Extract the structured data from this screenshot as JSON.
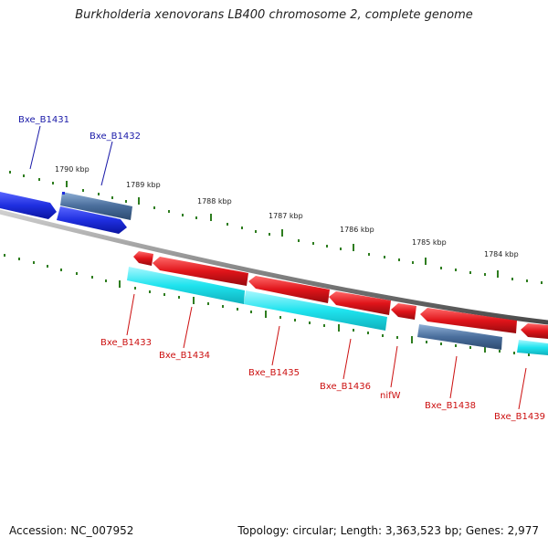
{
  "title": "Burkholderia xenovorans LB400 chromosome 2, complete genome",
  "footer": {
    "accession": "Accession: NC_007952",
    "topology": "Topology: circular; Length: 3,363,523 bp; Genes: 2,977"
  },
  "colors": {
    "backbone": "#8a8a8a",
    "tick": "#2e7d1f",
    "forward_gene": "#1f2fe0",
    "forward_cds": "#4a6e9c",
    "reverse_gene": "#e0141a",
    "reverse_cds": "#1fe3ee",
    "forward_label": "#1a1aa8",
    "reverse_label": "#cc1010"
  },
  "ruler_labels": [
    "1790 kbp",
    "1789 kbp",
    "1788 kbp",
    "1787 kbp",
    "1786 kbp",
    "1785 kbp",
    "1784 kbp"
  ],
  "gene_labels": {
    "forward": [
      "Bxe_B1431",
      "Bxe_B1432"
    ],
    "reverse": [
      "Bxe_B1433",
      "Bxe_B1434",
      "Bxe_B1435",
      "Bxe_B1436",
      "nifW",
      "Bxe_B1438",
      "Bxe_B1439"
    ]
  }
}
